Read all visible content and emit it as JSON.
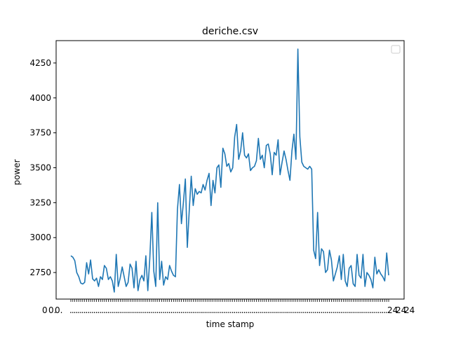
{
  "chart_data": {
    "type": "line",
    "title": "deriche.csv",
    "xlabel": "time stamp",
    "ylabel": "power",
    "ylim": [
      2560,
      4410
    ],
    "y_ticks": [
      2750,
      3000,
      3250,
      3500,
      3750,
      4000,
      4250
    ],
    "grid": false,
    "legend": {
      "placement": "top-right",
      "entries": []
    },
    "x_tick_labels_note": "dense, overlapping tick labels",
    "x_tick_labels_sample": [
      "0",
      "0.",
      "0.",
      "24",
      "24",
      "24"
    ],
    "colors": {
      "line": "#1f77b4",
      "axes": "#000000",
      "background": "#ffffff"
    },
    "series": [
      {
        "values": [
          2870,
          2860,
          2835,
          2750,
          2720,
          2675,
          2668,
          2680,
          2820,
          2740,
          2840,
          2705,
          2690,
          2710,
          2650,
          2720,
          2700,
          2800,
          2780,
          2700,
          2720,
          2690,
          2610,
          2880,
          2650,
          2710,
          2790,
          2720,
          2650,
          2680,
          2810,
          2780,
          2640,
          2830,
          2620,
          2700,
          2730,
          2690,
          2870,
          2620,
          2850,
          3180,
          2760,
          2650,
          3250,
          2700,
          2830,
          2660,
          2720,
          2700,
          2800,
          2760,
          2730,
          2720,
          3200,
          3380,
          3100,
          3250,
          3420,
          2930,
          3200,
          3440,
          3230,
          3350,
          3310,
          3330,
          3320,
          3380,
          3340,
          3410,
          3460,
          3230,
          3410,
          3320,
          3500,
          3520,
          3360,
          3640,
          3600,
          3510,
          3530,
          3470,
          3500,
          3720,
          3810,
          3560,
          3620,
          3750,
          3590,
          3570,
          3600,
          3480,
          3500,
          3510,
          3550,
          3710,
          3560,
          3590,
          3500,
          3660,
          3670,
          3600,
          3450,
          3610,
          3590,
          3700,
          3450,
          3540,
          3620,
          3560,
          3480,
          3410,
          3620,
          3740,
          3560,
          4350,
          3720,
          3540,
          3510,
          3500,
          3490,
          3510,
          3490,
          2910,
          2850,
          3180,
          2800,
          2920,
          2900,
          2750,
          2770,
          2910,
          2840,
          2690,
          2740,
          2790,
          2870,
          2700,
          2880,
          2690,
          2650,
          2780,
          2800,
          2670,
          2650,
          2880,
          2730,
          2710,
          2880,
          2650,
          2750,
          2730,
          2700,
          2640,
          2860,
          2740,
          2770,
          2740,
          2720,
          2690,
          2890,
          2730
        ]
      }
    ]
  }
}
